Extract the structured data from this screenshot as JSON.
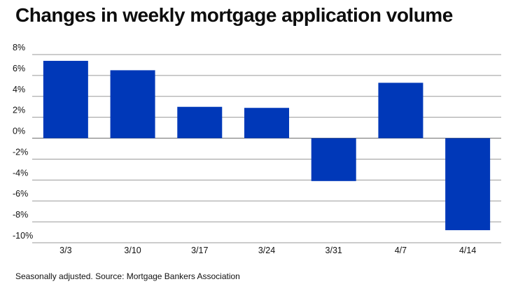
{
  "chart_data": {
    "type": "bar",
    "title": "Changes in weekly mortgage application volume",
    "categories": [
      "3/3",
      "3/10",
      "3/17",
      "3/24",
      "3/31",
      "4/7",
      "4/14"
    ],
    "values": [
      7.4,
      6.5,
      3.0,
      2.9,
      -4.1,
      5.3,
      -8.8
    ],
    "units": "%",
    "ylim": [
      -10,
      8
    ],
    "yticks": [
      8,
      6,
      4,
      2,
      0,
      -2,
      -4,
      -6,
      -8,
      -10
    ],
    "ytick_labels": [
      "8%",
      "6%",
      "4%",
      "2%",
      "0%",
      "-2%",
      "-4%",
      "-6%",
      "-8%",
      "-10%"
    ],
    "xlabel": "",
    "ylabel": "",
    "grid": true,
    "bar_color": "#0038b8"
  },
  "footnote": "Seasonally adjusted. Source: Mortgage Bankers Association"
}
